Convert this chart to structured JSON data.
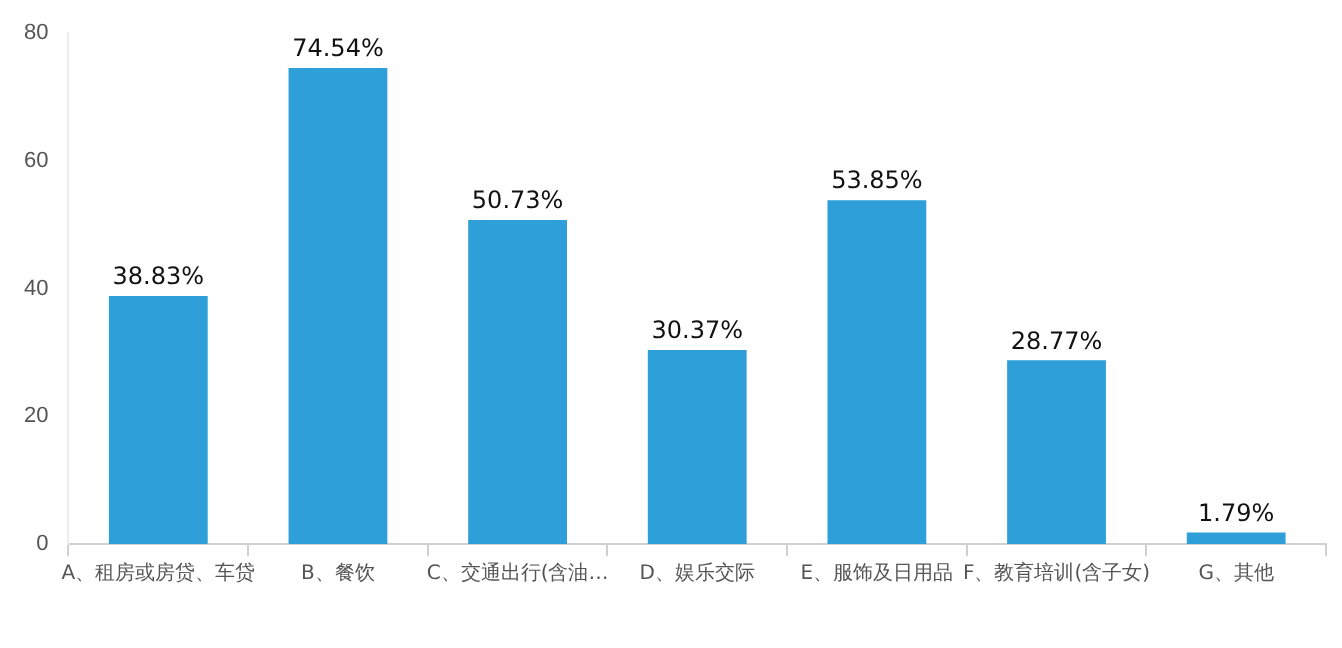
{
  "chart_data": {
    "type": "bar",
    "categories": [
      "A、租房或房贷、车贷",
      "B、餐饮",
      "C、交通出行(含油…",
      "D、娱乐交际",
      "E、服饰及日用品",
      "F、教育培训(含子女)",
      "G、其他"
    ],
    "values": [
      38.83,
      74.54,
      50.73,
      30.37,
      53.85,
      28.77,
      1.79
    ],
    "value_labels": [
      "38.83%",
      "74.54%",
      "50.73%",
      "30.37%",
      "53.85%",
      "28.77%",
      "1.79%"
    ],
    "color": "#2e9fd8",
    "ylim": [
      0,
      80
    ],
    "yticks": [
      0,
      20,
      40,
      60,
      80
    ],
    "grid": false,
    "legend": false
  }
}
